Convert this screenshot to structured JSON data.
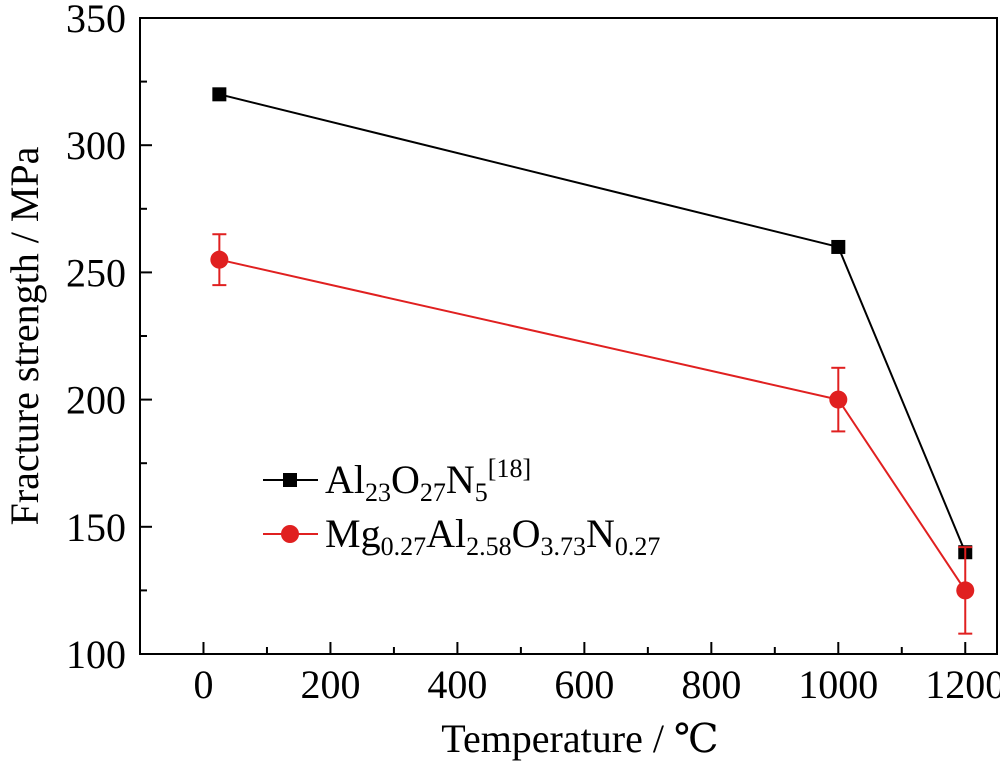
{
  "chart_data": {
    "type": "line",
    "xlabel": "Temperature / ℃",
    "ylabel": "Fracture strength / MPa",
    "xlim": [
      -100,
      1250
    ],
    "ylim": [
      100,
      350
    ],
    "x_ticks": [
      0,
      200,
      400,
      600,
      800,
      1000,
      1200
    ],
    "y_ticks": [
      100,
      150,
      200,
      250,
      300,
      350
    ],
    "legend_position": "center-left",
    "series": [
      {
        "name": "Al23O27N5[18]",
        "name_parts": [
          {
            "text": "Al",
            "style": "normal"
          },
          {
            "text": "23",
            "style": "sub"
          },
          {
            "text": "O",
            "style": "normal"
          },
          {
            "text": "27",
            "style": "sub"
          },
          {
            "text": "N",
            "style": "normal"
          },
          {
            "text": "5",
            "style": "sub"
          },
          {
            "text": "[18]",
            "style": "super"
          }
        ],
        "color": "#000000",
        "marker": "square",
        "x": [
          25,
          1000,
          1200
        ],
        "y": [
          320,
          260,
          140
        ]
      },
      {
        "name": "Mg0.27Al2.58O3.73N0.27",
        "name_parts": [
          {
            "text": "Mg",
            "style": "normal"
          },
          {
            "text": "0.27",
            "style": "sub"
          },
          {
            "text": "Al",
            "style": "normal"
          },
          {
            "text": "2.58",
            "style": "sub"
          },
          {
            "text": "O",
            "style": "normal"
          },
          {
            "text": "3.73",
            "style": "sub"
          },
          {
            "text": "N",
            "style": "normal"
          },
          {
            "text": "0.27",
            "style": "sub"
          }
        ],
        "color": "#e02020",
        "marker": "circle",
        "x": [
          25,
          1000,
          1200
        ],
        "y": [
          255,
          200,
          125
        ],
        "error": [
          10,
          12.5,
          17
        ]
      }
    ]
  }
}
